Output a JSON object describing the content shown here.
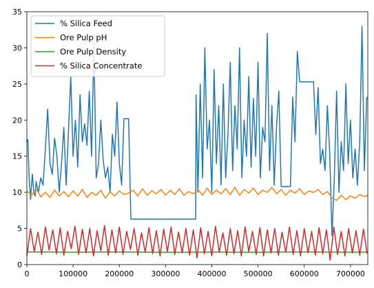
{
  "chart_data": {
    "type": "line",
    "xlim": [
      0,
      737453
    ],
    "ylim": [
      0,
      35
    ],
    "xticks": [
      0,
      100000,
      200000,
      300000,
      400000,
      500000,
      600000,
      700000
    ],
    "yticks": [
      0,
      5,
      10,
      15,
      20,
      25,
      30,
      35
    ],
    "grid": false,
    "legend_position": "upper-left",
    "series": [
      {
        "name": "% Silica Feed",
        "color": "#1f77b4",
        "x": [
          0,
          2000,
          5000,
          8000,
          10000,
          12000,
          15000,
          18000,
          20000,
          25000,
          30000,
          35000,
          40000,
          45000,
          50000,
          55000,
          60000,
          65000,
          70000,
          75000,
          80000,
          85000,
          90000,
          95000,
          100000,
          105000,
          110000,
          115000,
          120000,
          125000,
          130000,
          135000,
          140000,
          145000,
          150000,
          155000,
          160000,
          165000,
          170000,
          175000,
          180000,
          185000,
          190000,
          195000,
          200000,
          205000,
          210000,
          220000,
          225000,
          226000,
          300000,
          365000,
          366000,
          370000,
          375000,
          380000,
          385000,
          390000,
          395000,
          400000,
          405000,
          410000,
          415000,
          420000,
          425000,
          430000,
          435000,
          440000,
          445000,
          450000,
          455000,
          460000,
          465000,
          470000,
          475000,
          480000,
          485000,
          490000,
          495000,
          500000,
          505000,
          510000,
          515000,
          520000,
          525000,
          530000,
          535000,
          540000,
          545000,
          550000,
          555000,
          560000,
          565000,
          570000,
          575000,
          580000,
          585000,
          590000,
          595000,
          600000,
          620000,
          625000,
          630000,
          635000,
          640000,
          645000,
          650000,
          655000,
          660000,
          665000,
          670000,
          675000,
          680000,
          685000,
          690000,
          695000,
          700000,
          705000,
          710000,
          715000,
          720000,
          725000,
          730000,
          735000,
          737000
        ],
        "y": [
          17.0,
          17.3,
          12.0,
          9.0,
          11.0,
          12.5,
          10.0,
          9.5,
          11.5,
          10.0,
          12.0,
          11.0,
          16.0,
          21.5,
          14.0,
          12.5,
          17.5,
          15.0,
          10.0,
          14.0,
          19.0,
          11.0,
          18.5,
          26.0,
          15.0,
          20.0,
          13.5,
          23.5,
          17.0,
          19.5,
          16.5,
          24.0,
          15.0,
          30.5,
          12.0,
          14.0,
          20.0,
          14.5,
          12.0,
          13.5,
          10.0,
          18.0,
          15.0,
          22.5,
          14.0,
          11.0,
          20.2,
          20.2,
          6.3,
          6.3,
          6.3,
          6.3,
          23.5,
          10.0,
          25.0,
          12.0,
          30.0,
          16.0,
          20.0,
          10.0,
          27.0,
          14.0,
          22.0,
          11.0,
          25.0,
          12.0,
          18.0,
          28.0,
          13.0,
          22.0,
          16.0,
          30.0,
          12.0,
          20.0,
          15.0,
          26.0,
          13.5,
          23.0,
          15.0,
          28.0,
          12.0,
          19.0,
          17.0,
          32.0,
          13.0,
          22.0,
          11.0,
          19.0,
          24.0,
          10.8,
          10.8,
          10.8,
          10.8,
          10.8,
          23.2,
          17.0,
          29.5,
          25.3,
          25.3,
          25.3,
          25.3,
          18.0,
          24.5,
          14.0,
          16.0,
          13.0,
          22.0,
          15.5,
          4.0,
          12.0,
          24.0,
          10.0,
          17.0,
          13.0,
          25.0,
          14.0,
          20.0,
          12.0,
          16.0,
          11.0,
          17.0,
          33.0,
          13.0,
          23.0,
          23.2
        ]
      },
      {
        "name": "Ore Pulp pH",
        "color": "#ff7f0e",
        "x": [
          0,
          10000,
          20000,
          30000,
          40000,
          50000,
          60000,
          70000,
          80000,
          90000,
          100000,
          110000,
          120000,
          130000,
          140000,
          150000,
          160000,
          170000,
          180000,
          190000,
          200000,
          210000,
          220000,
          230000,
          240000,
          250000,
          260000,
          270000,
          280000,
          290000,
          300000,
          310000,
          320000,
          330000,
          340000,
          350000,
          360000,
          370000,
          380000,
          390000,
          400000,
          410000,
          420000,
          430000,
          440000,
          450000,
          460000,
          470000,
          480000,
          490000,
          500000,
          510000,
          520000,
          530000,
          540000,
          550000,
          560000,
          570000,
          580000,
          590000,
          600000,
          610000,
          620000,
          630000,
          640000,
          650000,
          660000,
          670000,
          680000,
          690000,
          700000,
          710000,
          720000,
          730000,
          737000
        ],
        "y": [
          10.2,
          9.6,
          10.5,
          9.4,
          10.0,
          9.3,
          10.3,
          9.5,
          10.1,
          9.4,
          10.2,
          9.5,
          10.4,
          9.3,
          10.0,
          9.6,
          10.3,
          9.2,
          10.1,
          9.5,
          10.2,
          9.7,
          9.9,
          10.3,
          9.5,
          10.5,
          9.6,
          10.2,
          9.8,
          10.4,
          9.6,
          10.3,
          9.7,
          10.5,
          9.6,
          10.1,
          9.8,
          10.4,
          9.6,
          10.6,
          9.7,
          10.3,
          9.8,
          10.5,
          9.7,
          10.7,
          9.6,
          10.4,
          9.9,
          10.6,
          9.7,
          10.3,
          10.0,
          10.7,
          9.8,
          10.4,
          9.6,
          10.3,
          9.9,
          10.5,
          9.7,
          10.2,
          10.0,
          10.4,
          9.7,
          10.1,
          9.2,
          8.9,
          9.6,
          9.0,
          9.5,
          9.2,
          9.7,
          9.4,
          9.6
        ]
      },
      {
        "name": "Ore Pulp Density",
        "color": "#2ca02c",
        "x": [
          0,
          100000,
          200000,
          300000,
          400000,
          500000,
          600000,
          700000,
          737000
        ],
        "y": [
          1.75,
          1.72,
          1.74,
          1.7,
          1.73,
          1.71,
          1.75,
          1.72,
          1.73
        ]
      },
      {
        "name": "% Silica Concentrate",
        "color": "#d62728",
        "x": [
          0,
          8000,
          16000,
          24000,
          32000,
          40000,
          48000,
          56000,
          64000,
          72000,
          80000,
          88000,
          96000,
          104000,
          112000,
          120000,
          128000,
          136000,
          144000,
          152000,
          160000,
          168000,
          176000,
          184000,
          192000,
          200000,
          208000,
          216000,
          224000,
          232000,
          240000,
          248000,
          256000,
          264000,
          272000,
          280000,
          288000,
          296000,
          304000,
          312000,
          320000,
          328000,
          336000,
          344000,
          352000,
          360000,
          368000,
          376000,
          384000,
          392000,
          400000,
          408000,
          416000,
          424000,
          432000,
          440000,
          448000,
          456000,
          464000,
          472000,
          480000,
          488000,
          496000,
          504000,
          512000,
          520000,
          528000,
          536000,
          544000,
          552000,
          560000,
          568000,
          576000,
          584000,
          592000,
          600000,
          608000,
          616000,
          624000,
          632000,
          640000,
          648000,
          656000,
          664000,
          672000,
          680000,
          688000,
          696000,
          704000,
          712000,
          720000,
          728000,
          736000
        ],
        "y": [
          1.2,
          5.0,
          1.8,
          4.5,
          1.4,
          5.2,
          2.0,
          4.8,
          1.5,
          5.1,
          1.3,
          4.6,
          2.2,
          5.3,
          1.4,
          4.9,
          1.6,
          5.0,
          1.2,
          4.7,
          1.9,
          5.4,
          1.3,
          4.8,
          1.6,
          5.2,
          1.4,
          4.6,
          2.1,
          5.0,
          1.3,
          4.4,
          1.7,
          5.1,
          1.5,
          4.7,
          1.2,
          4.9,
          1.8,
          5.2,
          1.4,
          4.5,
          1.6,
          5.0,
          1.3,
          4.8,
          0.9,
          5.1,
          1.5,
          4.6,
          1.2,
          5.3,
          1.7,
          4.4,
          1.3,
          5.0,
          1.5,
          4.7,
          1.2,
          5.2,
          1.8,
          4.6,
          1.4,
          5.1,
          1.2,
          4.8,
          1.6,
          5.0,
          1.3,
          4.5,
          1.7,
          5.2,
          1.4,
          4.7,
          1.2,
          5.0,
          1.6,
          4.6,
          1.3,
          5.1,
          1.5,
          4.8,
          0.6,
          5.2,
          1.4,
          4.6,
          1.2,
          5.0,
          1.6,
          4.7,
          1.3,
          4.9,
          1.5
        ]
      }
    ]
  }
}
